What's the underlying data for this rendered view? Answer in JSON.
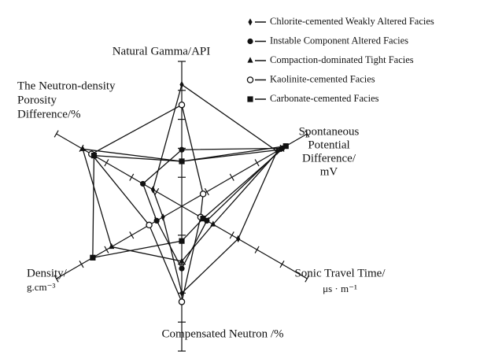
{
  "chart_data": {
    "type": "radar",
    "axes": [
      {
        "label": [
          "Natural Gamma/API"
        ]
      },
      {
        "label": [
          "Spontaneous",
          "Potential",
          "Difference/",
          "mV"
        ]
      },
      {
        "label": [
          "Sonic Travel Time/",
          "μs · m⁻¹"
        ]
      },
      {
        "label": [
          "Compensated Neutron /%"
        ]
      },
      {
        "label": [
          "Density/",
          "g.cm⁻³"
        ]
      },
      {
        "label": [
          "The Neutron-density",
          "Porosity",
          "Difference/%"
        ]
      }
    ],
    "rlim": [
      0,
      1
    ],
    "rticks": [
      0.2,
      0.4,
      0.6,
      0.8,
      1
    ],
    "legend": "upper right",
    "series": [
      {
        "name": "Chlorite-cemented Weakly Altered Facies",
        "marker": "diamond",
        "color": "#111111",
        "values": [
          0.84,
          0.76,
          0.45,
          0.6,
          0.15,
          0.23
        ]
      },
      {
        "name": "Instable Component Altered Facies",
        "marker": "circle",
        "color": "#111111",
        "values": [
          0.39,
          0.8,
          0.2,
          0.43,
          0.2,
          0.31
        ]
      },
      {
        "name": "Compaction-dominated Tight Facies",
        "marker": "triangle",
        "color": "#111111",
        "values": [
          0.31,
          0.78,
          0.25,
          0.38,
          0.56,
          0.79
        ]
      },
      {
        "name": "Kaolinite-cemented Facies",
        "marker": "open-circle",
        "color": "#111111",
        "values": [
          0.7,
          0.17,
          0.15,
          0.66,
          0.26,
          0.72
        ]
      },
      {
        "name": "Carbonate-cemented Facies",
        "marker": "square",
        "color": "#111111",
        "values": [
          0.31,
          0.83,
          0.17,
          0.24,
          0.71,
          0.7
        ]
      }
    ]
  }
}
